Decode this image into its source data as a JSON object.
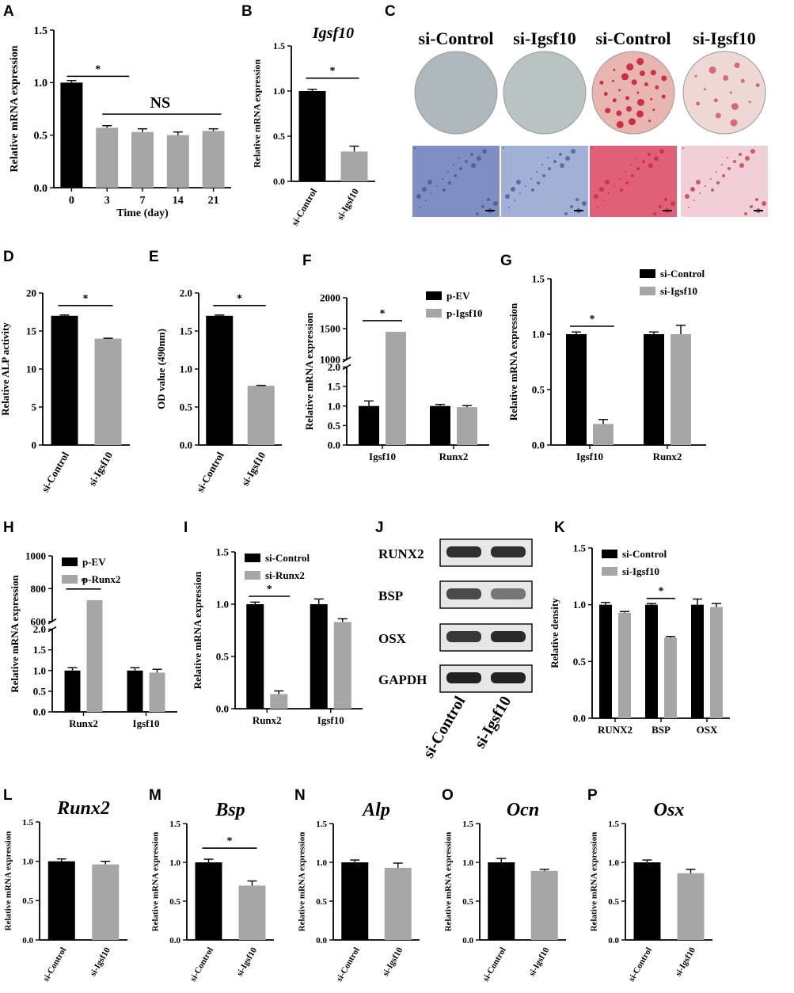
{
  "colors": {
    "black": "#000000",
    "grey": "#a6a6a6",
    "alp_stain": "#3c5190",
    "ars_stain": "#c8213c"
  },
  "panels": {
    "C": {
      "labels": [
        "si-Control",
        "si-Igsf10",
        "si-Control",
        "si-Igsf10"
      ],
      "stains": [
        "alp",
        "alp",
        "ars",
        "ars"
      ]
    },
    "J": {
      "rows": [
        "RUNX2",
        "BSP",
        "OSX",
        "GAPDH"
      ],
      "lanes": [
        "si-Control",
        "si-Igsf10"
      ],
      "band_intensity": [
        [
          0.85,
          0.85
        ],
        [
          0.7,
          0.45
        ],
        [
          0.8,
          0.88
        ],
        [
          0.92,
          0.92
        ]
      ]
    }
  },
  "chart_data": [
    {
      "id": "A",
      "type": "bar",
      "title": "",
      "xlabel": "Time (day)",
      "ylabel": "Relative mRNA expression",
      "categories": [
        "0",
        "3",
        "7",
        "14",
        "21"
      ],
      "series": [
        {
          "values": [
            1.0,
            0.57,
            0.53,
            0.5,
            0.54
          ],
          "errors": [
            0.02,
            0.02,
            0.03,
            0.03,
            0.02
          ]
        }
      ],
      "ylim": [
        0,
        1.5
      ],
      "yticks": [
        "0.0",
        "0.5",
        "1.0",
        "1.5"
      ],
      "annotations": [
        {
          "text": "*"
        },
        {
          "text": "NS"
        }
      ]
    },
    {
      "id": "B",
      "type": "bar",
      "title": "Igsf10",
      "xlabel": "",
      "ylabel": "Relative mRNA expression",
      "categories": [
        "si-Control",
        "si-Igsf10"
      ],
      "series": [
        {
          "values": [
            1.0,
            0.33
          ],
          "errors": [
            0.02,
            0.06
          ]
        }
      ],
      "ylim": [
        0,
        1.5
      ],
      "yticks": [
        "0.0",
        "0.5",
        "1.0",
        "1.5"
      ],
      "annotations": [
        {
          "text": "*"
        }
      ]
    },
    {
      "id": "D",
      "type": "bar",
      "title": "",
      "xlabel": "",
      "ylabel": "Relative ALP activity",
      "categories": [
        "si-Control",
        "si-Igsf10"
      ],
      "series": [
        {
          "values": [
            17.0,
            14.0
          ],
          "errors": [
            0.1,
            0.05
          ]
        }
      ],
      "ylim": [
        0,
        20
      ],
      "yticks": [
        "0",
        "5",
        "10",
        "15",
        "20"
      ],
      "annotations": [
        {
          "text": "*"
        }
      ]
    },
    {
      "id": "E",
      "type": "bar",
      "title": "",
      "xlabel": "",
      "ylabel": "OD value (490nm)",
      "categories": [
        "si-Control",
        "si-Igsf10"
      ],
      "series": [
        {
          "values": [
            1.7,
            0.78
          ],
          "errors": [
            0.01,
            0.005
          ]
        }
      ],
      "ylim": [
        0,
        2.0
      ],
      "yticks": [
        "0.0",
        "0.5",
        "1.0",
        "1.5",
        "2.0"
      ],
      "annotations": [
        {
          "text": "*"
        }
      ]
    },
    {
      "id": "F",
      "type": "bar",
      "title": "",
      "xlabel": "",
      "ylabel": "Relative mRNA expression",
      "categories": [
        "Igsf10",
        "Runx2"
      ],
      "series": [
        {
          "name": "p-EV",
          "values": [
            1.0,
            1.0
          ],
          "errors": [
            0.13,
            0.04
          ]
        },
        {
          "name": "p-Igsf10",
          "values": [
            1450,
            0.97
          ],
          "errors": [
            0,
            0.04
          ]
        }
      ],
      "ylim": [
        0,
        2000
      ],
      "axis_break": [
        2.0,
        1000
      ],
      "yticks": [
        "0.0",
        "0.5",
        "1.0",
        "1.5",
        "2.0",
        "1000",
        "1500",
        "2000"
      ],
      "legend": "top-right",
      "annotations": [
        {
          "text": "*"
        }
      ]
    },
    {
      "id": "G",
      "type": "bar",
      "title": "",
      "xlabel": "",
      "ylabel": "Relative mRNA expression",
      "categories": [
        "Igsf10",
        "Runx2"
      ],
      "series": [
        {
          "name": "si-Control",
          "values": [
            1.0,
            1.0
          ],
          "errors": [
            0.02,
            0.02
          ]
        },
        {
          "name": "si-Igsf10",
          "values": [
            0.19,
            1.0
          ],
          "errors": [
            0.04,
            0.08
          ]
        }
      ],
      "ylim": [
        0,
        1.5
      ],
      "yticks": [
        "0.0",
        "0.5",
        "1.0",
        "1.5"
      ],
      "legend": "top-right",
      "annotations": [
        {
          "text": "*"
        }
      ]
    },
    {
      "id": "H",
      "type": "bar",
      "title": "",
      "xlabel": "",
      "ylabel": "Relative mRNA expression",
      "categories": [
        "Runx2",
        "Igsf10"
      ],
      "series": [
        {
          "name": "p-EV",
          "values": [
            1.0,
            1.0
          ],
          "errors": [
            0.07,
            0.07
          ]
        },
        {
          "name": "p-Runx2",
          "values": [
            730,
            0.95
          ],
          "errors": [
            0,
            0.08
          ]
        }
      ],
      "ylim": [
        0,
        1000
      ],
      "axis_break": [
        2.0,
        600
      ],
      "yticks": [
        "0.0",
        "0.5",
        "1.0",
        "1.5",
        "2.0",
        "600",
        "800",
        "1000"
      ],
      "legend": "top-left",
      "annotations": [
        {
          "text": "*"
        }
      ]
    },
    {
      "id": "I",
      "type": "bar",
      "title": "",
      "xlabel": "",
      "ylabel": "Relative mRNA expression",
      "categories": [
        "Runx2",
        "Igsf10"
      ],
      "series": [
        {
          "name": "si-Control",
          "values": [
            1.0,
            1.0
          ],
          "errors": [
            0.02,
            0.05
          ]
        },
        {
          "name": "si-Runx2",
          "values": [
            0.14,
            0.83
          ],
          "errors": [
            0.03,
            0.03
          ]
        }
      ],
      "ylim": [
        0,
        1.5
      ],
      "yticks": [
        "0.0",
        "0.5",
        "1.0",
        "1.5"
      ],
      "legend": "top-left",
      "annotations": [
        {
          "text": "*"
        }
      ]
    },
    {
      "id": "K",
      "type": "bar",
      "title": "",
      "xlabel": "",
      "ylabel": "Relative density",
      "categories": [
        "RUNX2",
        "BSP",
        "OSX"
      ],
      "series": [
        {
          "name": "si-Control",
          "values": [
            1.0,
            1.0,
            1.0
          ],
          "errors": [
            0.02,
            0.01,
            0.05
          ]
        },
        {
          "name": "si-Igsf10",
          "values": [
            0.93,
            0.71,
            0.98
          ],
          "errors": [
            0.01,
            0.01,
            0.03
          ]
        }
      ],
      "ylim": [
        0,
        1.5
      ],
      "yticks": [
        "0.0",
        "0.5",
        "1.0",
        "1.5"
      ],
      "legend": "top-left",
      "annotations": [
        {
          "text": "*"
        }
      ]
    },
    {
      "id": "L",
      "type": "bar",
      "title": "Runx2",
      "xlabel": "",
      "ylabel": "Relative mRNA expression",
      "categories": [
        "si-Control",
        "si-Igsf10"
      ],
      "series": [
        {
          "values": [
            1.0,
            0.96
          ],
          "errors": [
            0.03,
            0.04
          ]
        }
      ],
      "ylim": [
        0,
        1.5
      ],
      "yticks": [
        "0.0",
        "0.5",
        "1.0",
        "1.5"
      ],
      "annotations": []
    },
    {
      "id": "M",
      "type": "bar",
      "title": "Bsp",
      "xlabel": "",
      "ylabel": "Relative mRNA expression",
      "categories": [
        "si-Control",
        "si-Igsf10"
      ],
      "series": [
        {
          "values": [
            1.0,
            0.7
          ],
          "errors": [
            0.04,
            0.06
          ]
        }
      ],
      "ylim": [
        0,
        1.5
      ],
      "yticks": [
        "0.0",
        "0.5",
        "1.0",
        "1.5"
      ],
      "annotations": [
        {
          "text": "*"
        }
      ]
    },
    {
      "id": "N",
      "type": "bar",
      "title": "Alp",
      "xlabel": "",
      "ylabel": "Relative mRNA expression",
      "categories": [
        "si-Control",
        "si-Igsf10"
      ],
      "series": [
        {
          "values": [
            1.0,
            0.93
          ],
          "errors": [
            0.03,
            0.06
          ]
        }
      ],
      "ylim": [
        0,
        1.5
      ],
      "yticks": [
        "0.0",
        "0.5",
        "1.0",
        "1.5"
      ],
      "annotations": []
    },
    {
      "id": "O",
      "type": "bar",
      "title": "Ocn",
      "xlabel": "",
      "ylabel": "Relative mRNA expression",
      "categories": [
        "si-Control",
        "si-Igsf10"
      ],
      "series": [
        {
          "values": [
            1.0,
            0.89
          ],
          "errors": [
            0.05,
            0.02
          ]
        }
      ],
      "ylim": [
        0,
        1.5
      ],
      "yticks": [
        "0.0",
        "0.5",
        "1.0",
        "1.5"
      ],
      "annotations": []
    },
    {
      "id": "P",
      "type": "bar",
      "title": "Osx",
      "xlabel": "",
      "ylabel": "Relative mRNA expression",
      "categories": [
        "si-Control",
        "si-Igsf10"
      ],
      "series": [
        {
          "values": [
            1.0,
            0.86
          ],
          "errors": [
            0.03,
            0.05
          ]
        }
      ],
      "ylim": [
        0,
        1.5
      ],
      "yticks": [
        "0.0",
        "0.5",
        "1.0",
        "1.5"
      ],
      "annotations": []
    }
  ]
}
